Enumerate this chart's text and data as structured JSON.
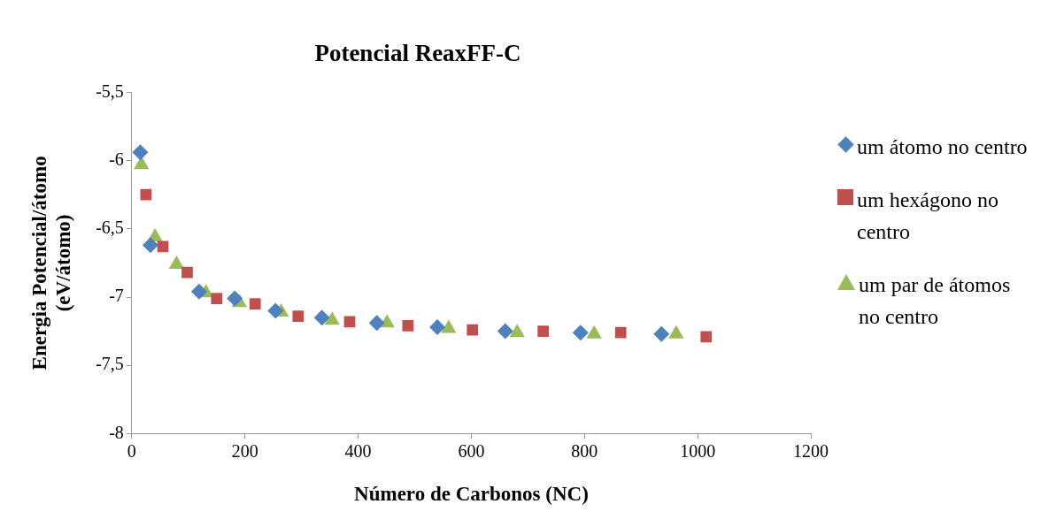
{
  "chart_data": {
    "type": "scatter",
    "title": "Potencial ReaxFF-C",
    "xlabel": "Número de Carbonos (NC)",
    "ylabel": "Energia Potencial/átomo (eV/átomo)",
    "xlim": [
      0,
      1200
    ],
    "xticks": [
      0,
      200,
      400,
      600,
      800,
      1000,
      1200
    ],
    "ylim": [
      -8,
      -5.5
    ],
    "yticks": [
      {
        "value": -8,
        "label": "-8"
      },
      {
        "value": -7.5,
        "label": "-7,5"
      },
      {
        "value": -7,
        "label": "-7"
      },
      {
        "value": -6.5,
        "label": "-6,5"
      },
      {
        "value": -6,
        "label": "-6"
      },
      {
        "value": -5.5,
        "label": "-5,5"
      }
    ],
    "grid": false,
    "legend": "right",
    "series": [
      {
        "name": "um átomo no centro",
        "color": "#4f81bd",
        "marker": "diamond",
        "x": [
          15,
          33,
          119,
          182,
          254,
          336,
          433,
          540,
          660,
          793,
          936
        ],
        "values": [
          -5.94,
          -6.62,
          -6.96,
          -7.01,
          -7.1,
          -7.15,
          -7.19,
          -7.22,
          -7.25,
          -7.26,
          -7.27
        ]
      },
      {
        "name": "um hexágono no centro",
        "color": "#c0504d",
        "marker": "square",
        "x": [
          25,
          55,
          98,
          150,
          218,
          294,
          385,
          488,
          602,
          727,
          864,
          1015
        ],
        "values": [
          -6.25,
          -6.63,
          -6.82,
          -7.01,
          -7.05,
          -7.14,
          -7.18,
          -7.21,
          -7.24,
          -7.25,
          -7.26,
          -7.29
        ]
      },
      {
        "name": "um par de átomos no centro",
        "color": "#9bbb59",
        "marker": "triangle",
        "x": [
          17,
          41,
          79,
          131,
          190,
          264,
          354,
          451,
          560,
          681,
          817,
          962
        ],
        "values": [
          -6.03,
          -6.56,
          -6.76,
          -6.97,
          -7.04,
          -7.11,
          -7.17,
          -7.19,
          -7.23,
          -7.26,
          -7.27,
          -7.27
        ]
      }
    ]
  }
}
